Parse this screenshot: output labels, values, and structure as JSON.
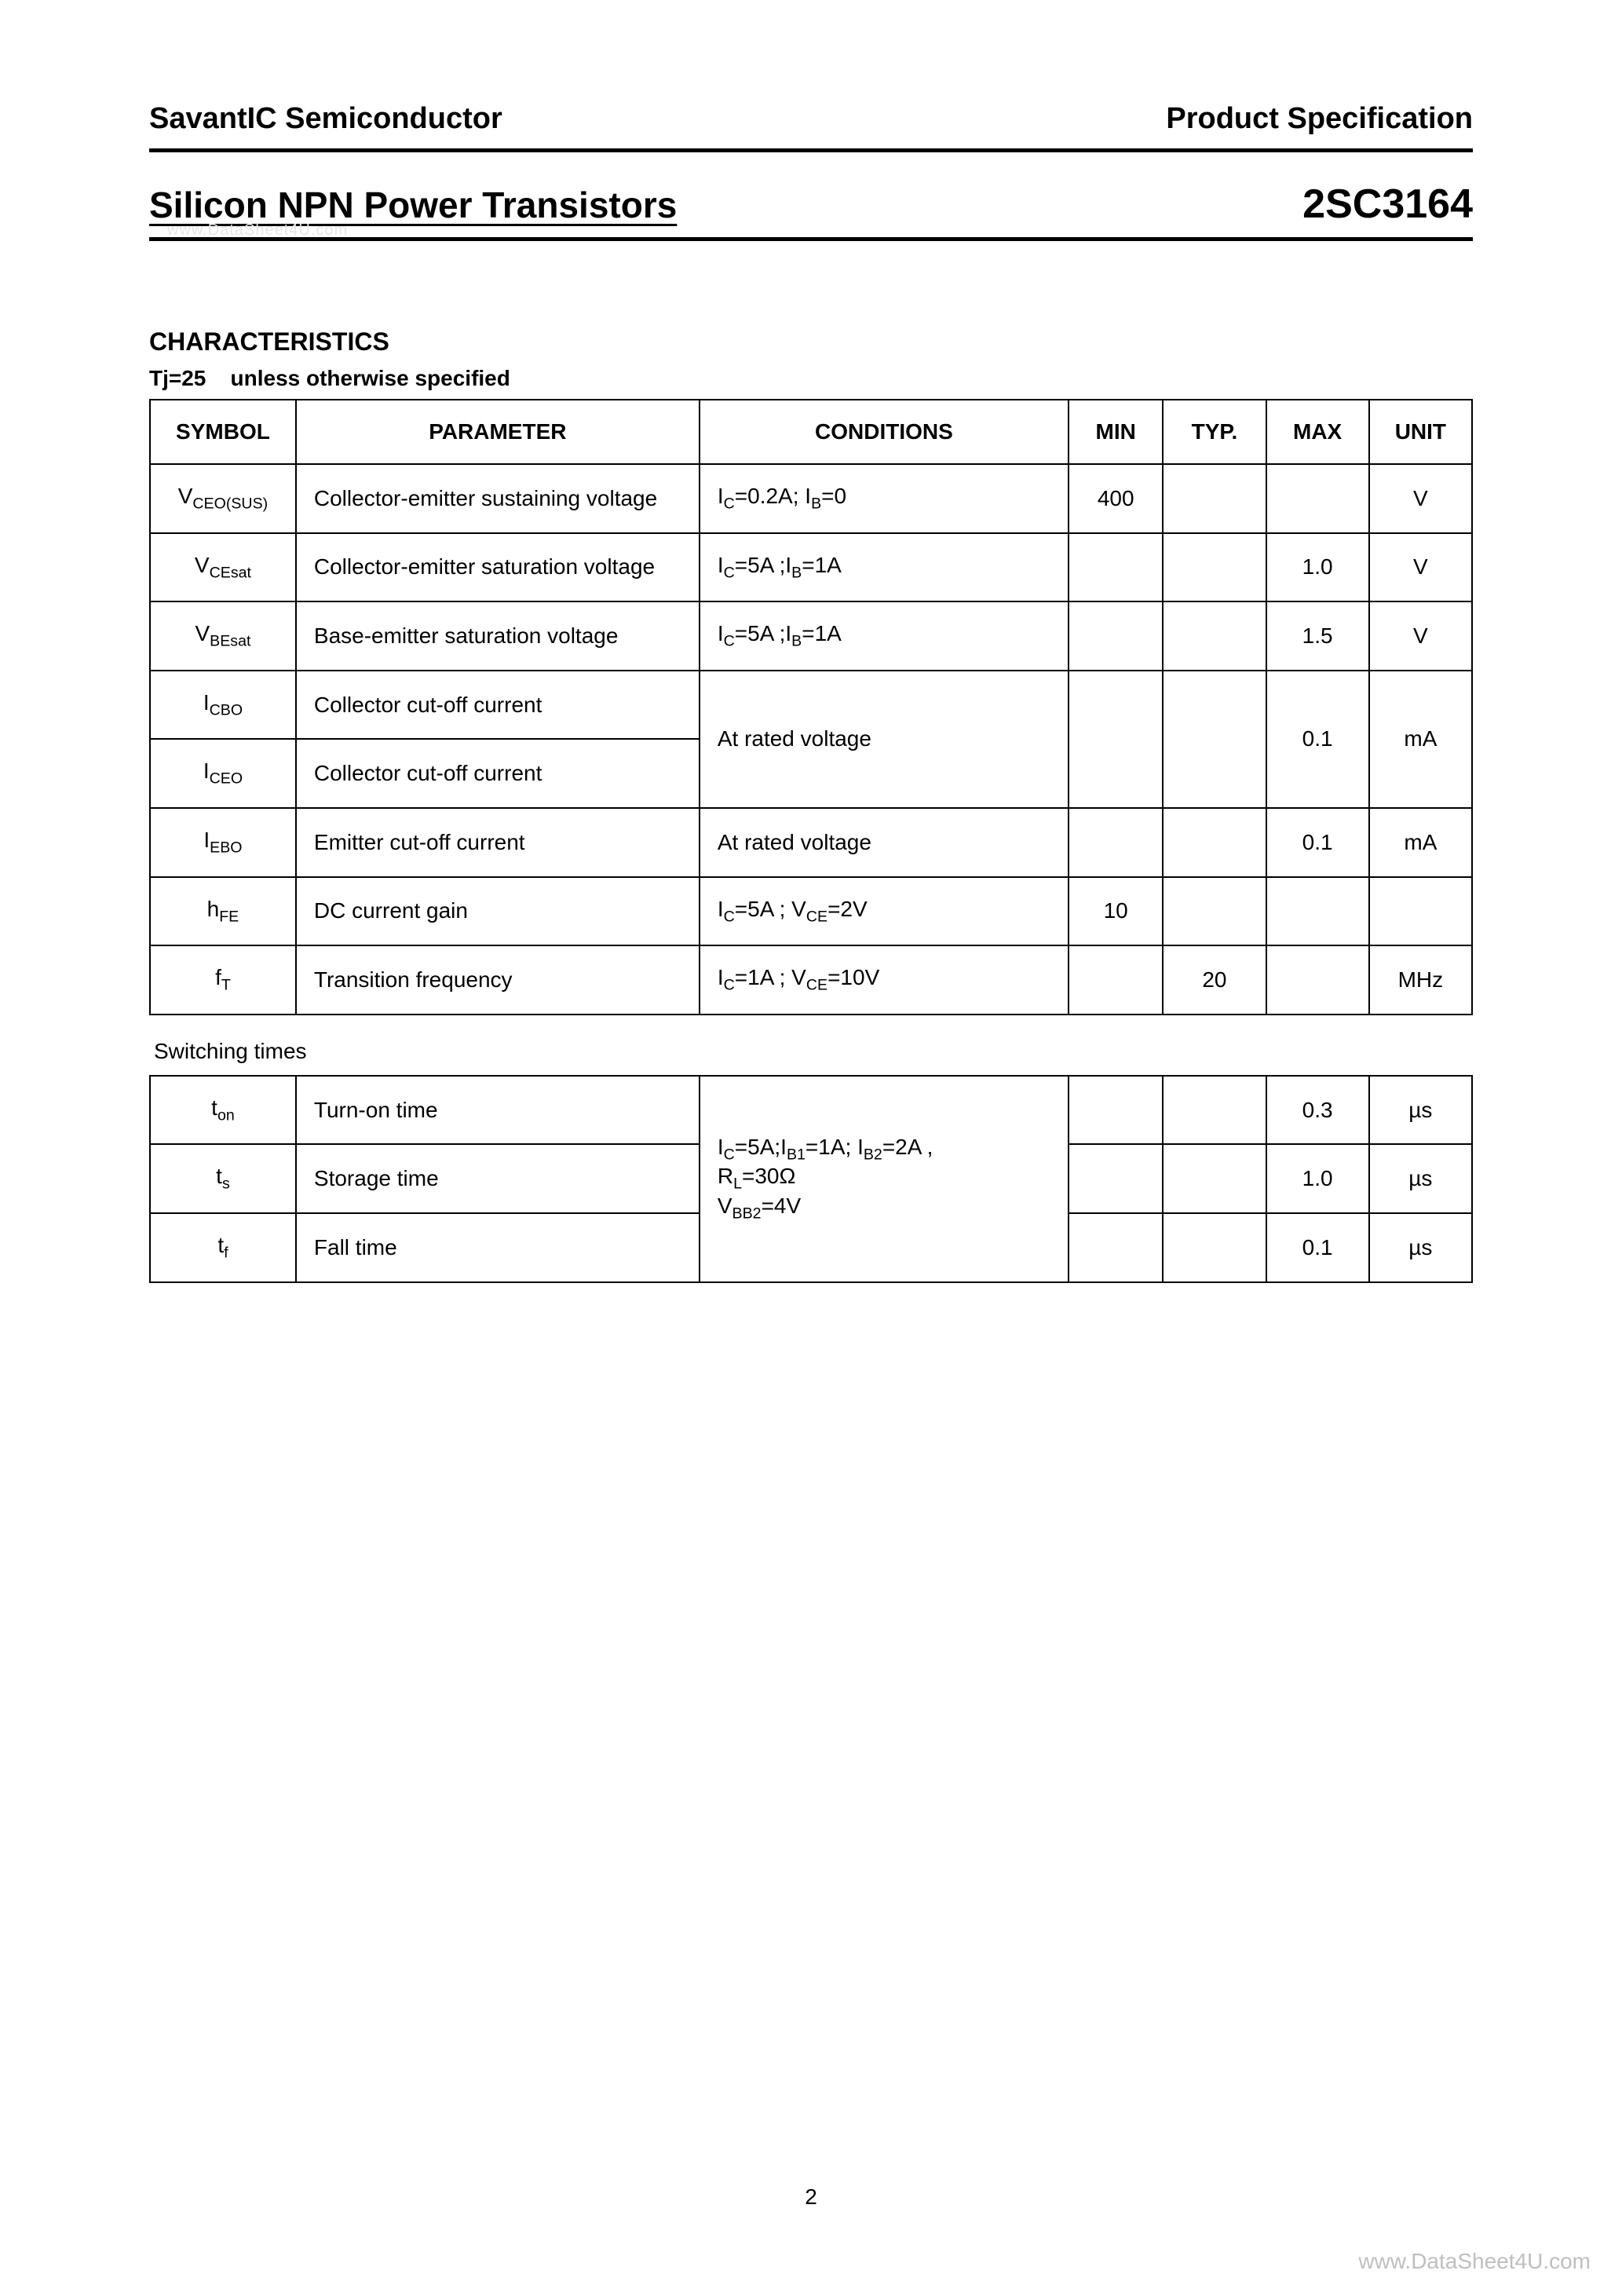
{
  "header": {
    "company": "SavantIC Semiconductor",
    "spec_label": "Product Specification"
  },
  "title": {
    "left": "Silicon NPN Power Transistors",
    "right": "2SC3164"
  },
  "watermark_top": "www.DataSheet4U.com",
  "section": {
    "heading": "CHARACTERISTICS",
    "tj_label": "Tj=25",
    "tj_note": "unless otherwise specified"
  },
  "table_headers": {
    "symbol": "SYMBOL",
    "parameter": "PARAMETER",
    "conditions": "CONDITIONS",
    "min": "MIN",
    "typ": "TYP.",
    "max": "MAX",
    "unit": "UNIT"
  },
  "rows": [
    {
      "symbol_html": "V<sub>CEO(SUS)</sub>",
      "parameter": "Collector-emitter sustaining voltage",
      "conditions_html": "I<sub>C</sub>=0.2A; I<sub>B</sub>=0",
      "min": "400",
      "typ": "",
      "max": "",
      "unit": "V"
    },
    {
      "symbol_html": "V<sub>CEsat</sub>",
      "parameter": "Collector-emitter saturation voltage",
      "conditions_html": "I<sub>C</sub>=5A ;I<sub>B</sub>=1A",
      "min": "",
      "typ": "",
      "max": "1.0",
      "unit": "V"
    },
    {
      "symbol_html": "V<sub>BEsat</sub>",
      "parameter": "Base-emitter saturation voltage",
      "conditions_html": "I<sub>C</sub>=5A ;I<sub>B</sub>=1A",
      "min": "",
      "typ": "",
      "max": "1.5",
      "unit": "V"
    },
    {
      "symbol_html": "I<sub>CBO</sub>",
      "parameter": "Collector cut-off current",
      "conditions_html": "At rated voltage",
      "min": "",
      "typ": "",
      "max": "0.1",
      "unit": "mA",
      "merge_down_cond": true
    },
    {
      "symbol_html": "I<sub>CEO</sub>",
      "parameter": "Collector cut-off current",
      "conditions_html": "",
      "min": "",
      "typ": "",
      "max": "",
      "unit": "",
      "merged": true
    },
    {
      "symbol_html": "I<sub>EBO</sub>",
      "parameter": "Emitter cut-off current",
      "conditions_html": "At rated voltage",
      "min": "",
      "typ": "",
      "max": "0.1",
      "unit": "mA"
    },
    {
      "symbol_html": "h<sub>FE</sub>",
      "parameter": "DC current gain",
      "conditions_html": "I<sub>C</sub>=5A ; V<sub>CE</sub>=2V",
      "min": "10",
      "typ": "",
      "max": "",
      "unit": ""
    },
    {
      "symbol_html": "f<sub>T</sub>",
      "parameter": "Transition frequency",
      "conditions_html": "I<sub>C</sub>=1A ; V<sub>CE</sub>=10V",
      "min": "",
      "typ": "20",
      "max": "",
      "unit": "MHz"
    }
  ],
  "switching_label": "Switching times",
  "switch_rows": [
    {
      "symbol_html": "t<sub>on</sub>",
      "parameter": "Turn-on time",
      "max": "0.3",
      "unit": "µs"
    },
    {
      "symbol_html": "t<sub>s</sub>",
      "parameter": "Storage time",
      "max": "1.0",
      "unit": "µs"
    },
    {
      "symbol_html": "t<sub>f</sub>",
      "parameter": "Fall time",
      "max": "0.1",
      "unit": "µs"
    }
  ],
  "switch_conditions_html": "I<sub>C</sub>=5A;I<sub>B1</sub>=1A; I<sub>B2</sub>=2A ,<br>R<sub>L</sub>=30Ω<br>V<sub>BB2</sub>=4V",
  "page_number": "2",
  "footer_link": "www.DataSheet4U.com",
  "colors": {
    "text": "#000000",
    "background": "#ffffff",
    "border": "#000000",
    "watermark": "#e6e6e6",
    "footer": "#bfbfbf"
  }
}
